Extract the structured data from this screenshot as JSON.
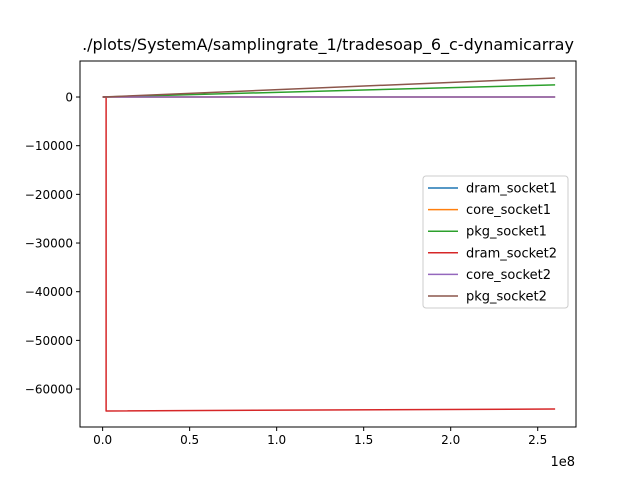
{
  "chart_data": {
    "type": "line",
    "title": "./plots/SystemA/samplingrate_1/tradesoap_6_c-dynamicarray",
    "xlabel": "",
    "ylabel": "",
    "x_offset_label": "1e8",
    "xlim": [
      -13000000,
      272000000
    ],
    "ylim": [
      -67800000,
      7400000
    ],
    "ylim_note": "",
    "x_ticks": [
      {
        "value": 0,
        "label": "0.0"
      },
      {
        "value": 50000000,
        "label": "0.5"
      },
      {
        "value": 100000000,
        "label": "1.0"
      },
      {
        "value": 150000000,
        "label": "1.5"
      },
      {
        "value": 200000000,
        "label": "2.0"
      },
      {
        "value": 250000000,
        "label": "2.5"
      }
    ],
    "y_ticks": [
      {
        "value": 0,
        "label": "0"
      },
      {
        "value": -10000,
        "label": "−10000"
      },
      {
        "value": -20000,
        "label": "−20000"
      },
      {
        "value": -30000,
        "label": "−30000"
      },
      {
        "value": -40000,
        "label": "−40000"
      },
      {
        "value": -50000,
        "label": "−50000"
      },
      {
        "value": -60000,
        "label": "−60000"
      }
    ],
    "grid": false,
    "legend_position": "right",
    "series": [
      {
        "name": "dram_socket1",
        "color": "#1f77b4",
        "x": [
          0,
          260000000
        ],
        "y": [
          0,
          0
        ]
      },
      {
        "name": "core_socket1",
        "color": "#ff7f0e",
        "x": [
          0,
          260000000
        ],
        "y": [
          0,
          0
        ]
      },
      {
        "name": "pkg_socket1",
        "color": "#2ca02c",
        "x": [
          0,
          260000000
        ],
        "y": [
          0,
          2500
        ]
      },
      {
        "name": "dram_socket2",
        "color": "#d62728",
        "x": [
          0,
          2000000,
          2000000,
          260000000
        ],
        "y": [
          0,
          0,
          -64500,
          -64100
        ]
      },
      {
        "name": "core_socket2",
        "color": "#9467bd",
        "x": [
          0,
          260000000
        ],
        "y": [
          0,
          0
        ]
      },
      {
        "name": "pkg_socket2",
        "color": "#8c564b",
        "x": [
          0,
          260000000
        ],
        "y": [
          0,
          3900
        ]
      }
    ]
  }
}
